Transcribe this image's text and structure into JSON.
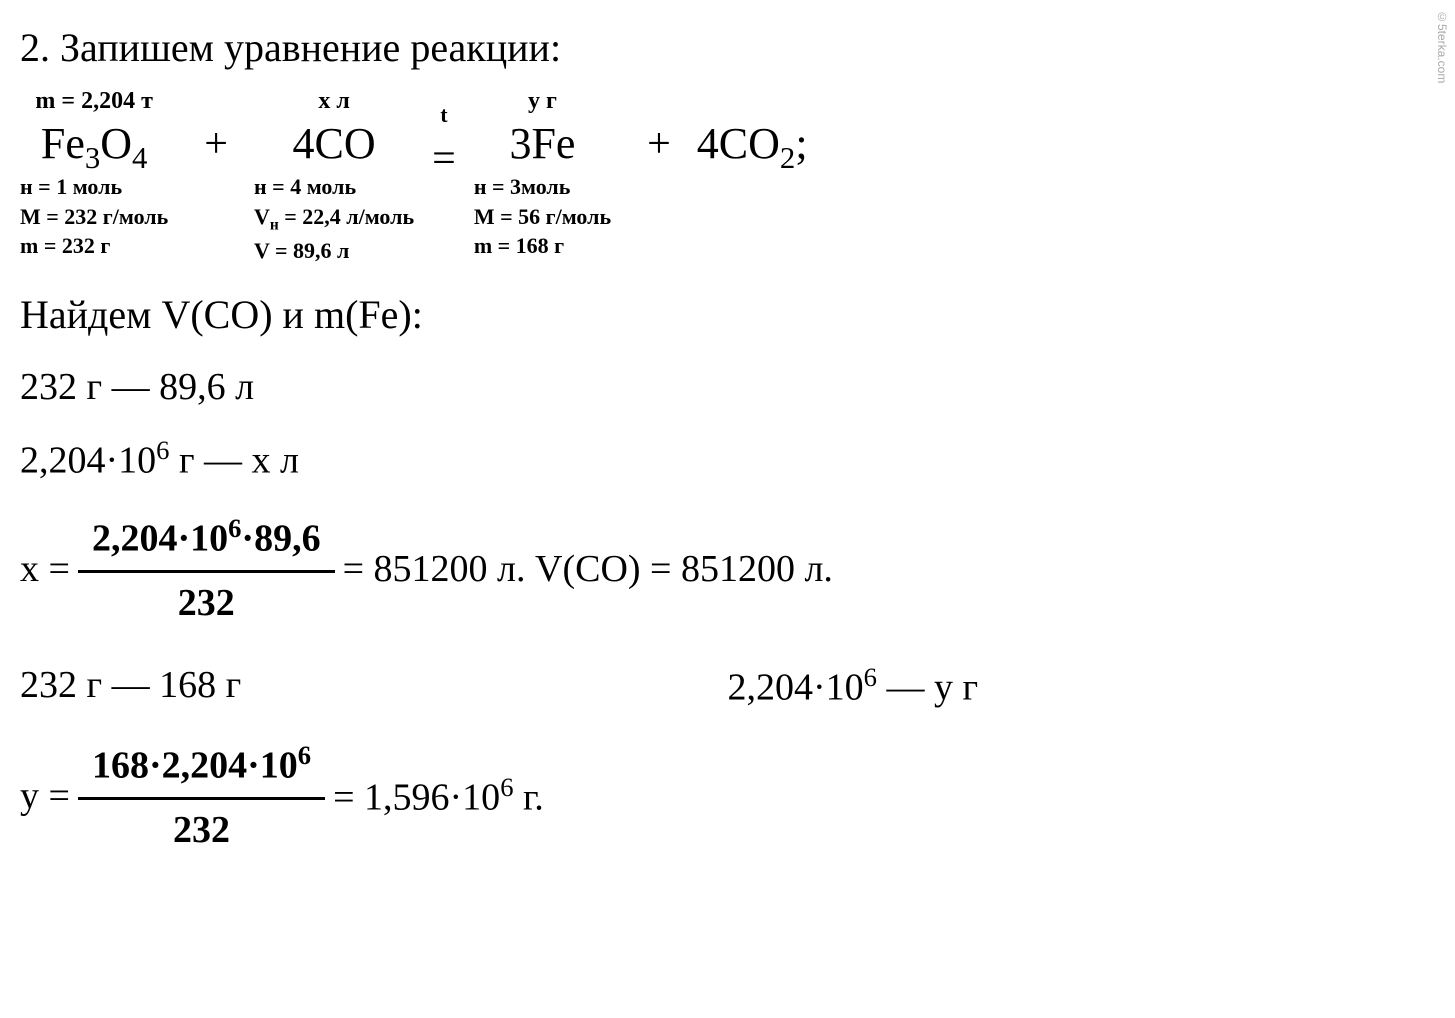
{
  "title": "2. Запишем уравнение реакции:",
  "watermark": "©5terka.com",
  "equation": {
    "term1": {
      "above": "m = 2,204 т",
      "formula_pre": "Fe",
      "formula_sub1": "3",
      "formula_mid": "O",
      "formula_sub2": "4",
      "below1": "н = 1 моль",
      "below2": "M = 232 г/моль",
      "below3": "m = 232 г"
    },
    "op1": "+",
    "term2": {
      "above": "x л",
      "coef": "4",
      "formula": "CO",
      "below1": "н = 4 моль",
      "below2_pre": "V",
      "below2_sub": "н",
      "below2_post": " = 22,4 л/моль",
      "below3": "V = 89,6 л"
    },
    "op2_above": "t",
    "op2": "=",
    "term3": {
      "above": "y г",
      "coef": "3",
      "formula": "Fe",
      "below1": "н = 3моль",
      "below2": "M = 56 г/моль",
      "below3": "m = 168 г"
    },
    "op3": "+",
    "term4": {
      "coef": "4",
      "formula_pre": "CO",
      "formula_sub": "2",
      "semicolon": ";"
    }
  },
  "find_line": "Найдем V(CO) и m(Fe):",
  "prop1_line1": "232 г — 89,6 л",
  "prop1_line2_pre": "2,204·10",
  "prop1_line2_sup": "6",
  "prop1_line2_post": " г — x л",
  "calc_x": {
    "lhs": "x = ",
    "num_pre": "2,204·10",
    "num_sup": "6",
    "num_post": "·89,6",
    "den": "232",
    "result": " = 851200 л. V(CO) = 851200 л."
  },
  "prop2": {
    "left": "232 г — 168 г",
    "right_pre": "2,204·10",
    "right_sup": "6",
    "right_post": " — y г"
  },
  "calc_y": {
    "lhs": "y = ",
    "num_pre": "168·2,204·10",
    "num_sup": "6",
    "den": "232",
    "result_pre": " = 1,596·10",
    "result_sup": "6",
    "result_post": " г."
  }
}
